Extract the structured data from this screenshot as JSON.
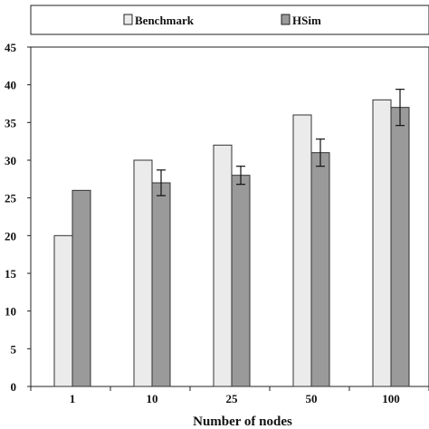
{
  "chart_data": {
    "type": "bar",
    "categories": [
      "1",
      "10",
      "25",
      "50",
      "100"
    ],
    "series": [
      {
        "name": "Benchmark",
        "values": [
          20,
          30,
          32,
          36,
          38
        ],
        "errors": [
          null,
          null,
          null,
          null,
          null
        ],
        "color": "#ebebeb"
      },
      {
        "name": "HSim",
        "values": [
          26,
          27,
          28,
          31,
          37
        ],
        "errors": [
          null,
          1.7,
          1.2,
          1.8,
          2.4
        ],
        "color": "#9a9a9a"
      }
    ],
    "title": "",
    "xlabel": "Number of nodes",
    "ylabel": "",
    "ylim": [
      0,
      45
    ],
    "yticks": [
      0,
      5,
      10,
      15,
      20,
      25,
      30,
      35,
      40,
      45
    ],
    "grid": false,
    "legend_position": "top"
  }
}
